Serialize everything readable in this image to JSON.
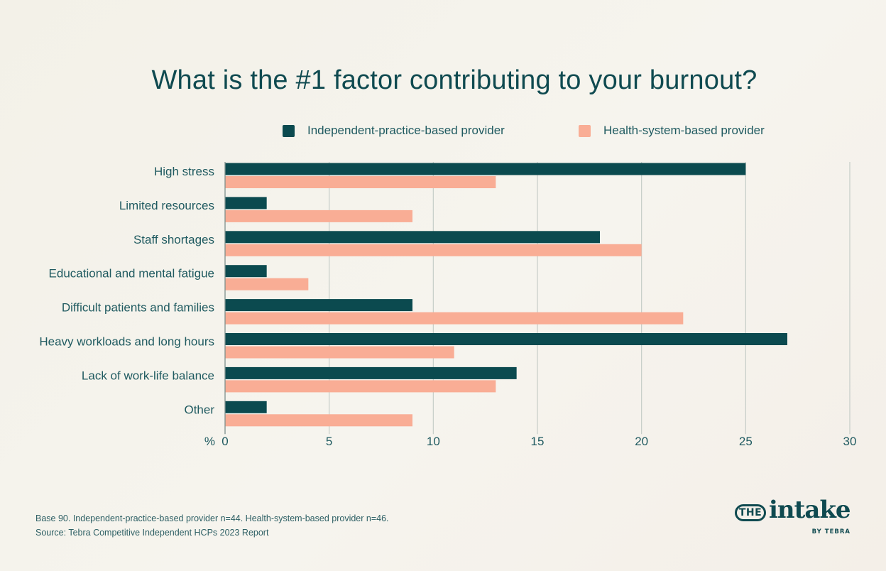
{
  "chart_data": {
    "type": "bar",
    "orientation": "horizontal",
    "title": "What is the #1 factor contributing to your burnout?",
    "categories": [
      "High stress",
      "Limited resources",
      "Staff shortages",
      "Educational and mental fatigue",
      "Difficult patients and families",
      "Heavy workloads and long hours",
      "Lack of work-life balance",
      "Other"
    ],
    "series": [
      {
        "name": "Independent-practice-based provider",
        "color": "#0b4a4f",
        "values": [
          25,
          2,
          18,
          2,
          9,
          27,
          14,
          2
        ]
      },
      {
        "name": "Health-system-based provider",
        "color": "#f9ad95",
        "values": [
          13,
          9,
          20,
          4,
          22,
          11,
          13,
          9
        ]
      }
    ],
    "xlabel": "%",
    "xlim": [
      0,
      30
    ],
    "xticks": [
      0,
      5,
      10,
      15,
      20,
      25,
      30
    ],
    "grid": true,
    "legend": "top-center"
  },
  "footnotes": {
    "base": "Base 90. Independent-practice-based provider n=44. Health-system-based provider n=46.",
    "source": "Source: Tebra Competitive Independent HCPs 2023 Report"
  },
  "logo": {
    "the": "THE",
    "word": "intake",
    "by": "BY TEBRA"
  }
}
